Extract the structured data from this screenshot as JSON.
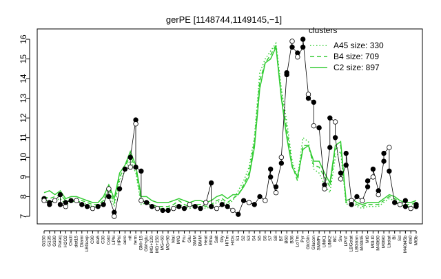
{
  "chart_data": {
    "type": "line",
    "title": "gerPE [1148744,1149145,−1]",
    "xlabel": "",
    "ylabel": "",
    "ylim": [
      7,
      16
    ],
    "y_ticks": [
      7,
      8,
      9,
      10,
      11,
      12,
      13,
      14,
      15,
      16
    ],
    "categories": [
      "G150",
      "G135",
      "G180",
      "Paraq",
      "H2O2",
      "Oxctl",
      "dist15",
      "Diami",
      "LBGexp",
      "C90",
      "dia5",
      "C30",
      "Cold",
      "LPhi",
      "HPhi",
      "aero",
      "nit",
      "ferm",
      "GM+15",
      "GM+glu",
      "MG+120",
      "MG+150",
      "MG+60",
      "MG+90",
      "Mal",
      "M/G",
      "Fru",
      "Glu",
      "SMM",
      "BMM",
      "Heat",
      "Etha",
      "Salt",
      "Gly",
      "HiTm",
      "HiOs",
      "S1",
      "S2",
      "S3",
      "S4",
      "S5",
      "S6",
      "S7",
      "S8",
      "BT",
      "B60",
      "B36",
      "LoTm",
      "Pyr",
      "GlcGln",
      "Glucon",
      "SMMPr",
      "UNK1",
      "UNK2",
      "BC",
      "Sw",
      "LPhT",
      "LBGstat",
      "LBGtran",
      "M40t45",
      "Mt0",
      "Mt0-t0",
      "M40t90",
      "M0t90",
      "Lbstat",
      "Bl",
      "Sd",
      "M40t45b",
      "dia0",
      "Mt0b"
    ],
    "x_tick_labels": [
      "G150",
      "G135",
      "G180",
      "Paraq",
      "H2O2",
      "Oxctl",
      "dist15",
      "Diami",
      "LBGexp",
      "C90",
      "dia5",
      "C30",
      "Cold",
      "LPhi",
      "HPhi",
      "aero",
      "nit",
      "ferm",
      "GM+15",
      "GM+glu",
      "MG+120",
      "MG+150",
      "MG+60",
      "MG+90",
      "Mal",
      "M/G",
      "Fru",
      "Glu",
      "SMM",
      "BMM",
      "Heat",
      "Etha",
      "Salt",
      "Gly",
      "HiTm",
      "HiOs",
      "S1",
      "S2",
      "S3",
      "S4",
      "S5",
      "S6",
      "S7",
      "S8",
      "BT",
      "B60",
      "B36",
      "LoTm",
      "Pyr",
      "GlcGln",
      "Glucon",
      "SMMPr",
      "UNK1",
      "UNK2",
      "BC",
      "Sw",
      "LPhT",
      "LBGstat",
      "LBGtran",
      "M40t45",
      "Mt0",
      "Mt0-t0",
      "M40t90",
      "M0t90",
      "Lbstat",
      "Bl",
      "Sd",
      "M40t45b",
      "dia0",
      "Mt0b"
    ],
    "series": [
      {
        "name": "A45 size: 330",
        "dash": "dotted",
        "values": [
          7.9,
          7.7,
          7.8,
          7.9,
          7.6,
          7.7,
          7.8,
          7.7,
          7.6,
          7.5,
          7.5,
          7.7,
          8.2,
          7.5,
          8.8,
          9.3,
          9.9,
          9.2,
          7.6,
          7.7,
          7.5,
          7.4,
          7.4,
          7.4,
          7.5,
          7.6,
          7.5,
          7.4,
          7.5,
          7.5,
          7.4,
          7.5,
          7.7,
          7.8,
          7.6,
          7.8,
          8.3,
          8.8,
          9.5,
          11.0,
          14.3,
          15.0,
          15.4,
          15.8,
          13.5,
          11.8,
          9.8,
          9.0,
          11.0,
          10.8,
          9.4,
          9.2,
          8.6,
          8.2,
          10.0,
          10.3,
          7.6,
          7.7,
          7.5,
          7.4,
          7.5,
          7.5,
          7.5,
          7.7,
          7.9,
          7.8,
          7.6,
          7.5,
          7.5,
          7.6
        ]
      },
      {
        "name": "B4 size: 709",
        "dash": "dashed",
        "values": [
          8.0,
          7.9,
          8.0,
          8.1,
          7.8,
          7.8,
          7.9,
          7.8,
          7.7,
          7.6,
          7.6,
          7.8,
          8.5,
          7.7,
          9.0,
          9.5,
          10.1,
          9.4,
          7.8,
          7.8,
          7.6,
          7.5,
          7.5,
          7.5,
          7.6,
          7.8,
          7.6,
          7.5,
          7.6,
          7.6,
          7.5,
          7.6,
          7.8,
          7.9,
          7.7,
          7.9,
          8.1,
          8.6,
          9.2,
          10.8,
          13.9,
          14.8,
          15.2,
          15.7,
          13.2,
          11.4,
          9.6,
          8.8,
          10.6,
          10.6,
          9.6,
          9.5,
          9.0,
          8.5,
          10.4,
          10.6,
          7.7,
          7.8,
          7.6,
          7.5,
          7.6,
          7.6,
          7.6,
          7.8,
          8.0,
          7.9,
          7.7,
          7.6,
          7.6,
          7.7
        ]
      },
      {
        "name": "C2 size: 897",
        "dash": "solid",
        "values": [
          8.2,
          8.3,
          8.1,
          8.3,
          7.9,
          8.0,
          8.0,
          7.9,
          7.8,
          7.7,
          7.7,
          8.0,
          8.6,
          7.9,
          9.2,
          9.6,
          10.3,
          9.6,
          8.0,
          8.0,
          7.8,
          7.7,
          7.7,
          7.7,
          7.8,
          7.9,
          7.8,
          7.7,
          7.8,
          7.8,
          7.7,
          7.8,
          8.0,
          8.1,
          7.9,
          8.1,
          8.1,
          8.5,
          9.0,
          10.5,
          13.5,
          14.8,
          15.0,
          15.6,
          13.0,
          11.0,
          9.5,
          9.0,
          10.4,
          10.6,
          9.8,
          9.8,
          9.2,
          8.7,
          10.6,
          10.8,
          7.8,
          7.9,
          7.7,
          7.6,
          7.7,
          7.7,
          7.7,
          7.9,
          8.1,
          8.0,
          7.8,
          7.7,
          7.7,
          7.8
        ]
      }
    ],
    "points": [
      {
        "x": 0,
        "y": 7.9
      },
      {
        "x": 0,
        "y": 7.8
      },
      {
        "x": 1,
        "y": 7.6
      },
      {
        "x": 1,
        "y": 7.7
      },
      {
        "x": 2,
        "y": 7.8
      },
      {
        "x": 3,
        "y": 8.1
      },
      {
        "x": 3,
        "y": 7.6
      },
      {
        "x": 4,
        "y": 7.5
      },
      {
        "x": 4,
        "y": 7.7
      },
      {
        "x": 5,
        "y": 7.8
      },
      {
        "x": 6,
        "y": 7.8
      },
      {
        "x": 7,
        "y": 7.6
      },
      {
        "x": 8,
        "y": 7.5
      },
      {
        "x": 9,
        "y": 7.4
      },
      {
        "x": 10,
        "y": 7.5
      },
      {
        "x": 11,
        "y": 7.6
      },
      {
        "x": 12,
        "y": 8.4
      },
      {
        "x": 12,
        "y": 8.0
      },
      {
        "x": 13,
        "y": 7.2
      },
      {
        "x": 13,
        "y": 7.0
      },
      {
        "x": 14,
        "y": 8.4
      },
      {
        "x": 15,
        "y": 9.4
      },
      {
        "x": 16,
        "y": 9.5
      },
      {
        "x": 16,
        "y": 10.0
      },
      {
        "x": 17,
        "y": 11.9
      },
      {
        "x": 17,
        "y": 11.7
      },
      {
        "x": 17,
        "y": 9.5
      },
      {
        "x": 18,
        "y": 9.3
      },
      {
        "x": 18,
        "y": 7.8
      },
      {
        "x": 19,
        "y": 7.7
      },
      {
        "x": 20,
        "y": 7.5
      },
      {
        "x": 21,
        "y": 7.4
      },
      {
        "x": 22,
        "y": 7.3
      },
      {
        "x": 23,
        "y": 7.3
      },
      {
        "x": 24,
        "y": 7.4
      },
      {
        "x": 25,
        "y": 7.5
      },
      {
        "x": 26,
        "y": 7.4
      },
      {
        "x": 27,
        "y": 7.6
      },
      {
        "x": 28,
        "y": 7.5
      },
      {
        "x": 29,
        "y": 7.4
      },
      {
        "x": 30,
        "y": 7.7
      },
      {
        "x": 31,
        "y": 8.7
      },
      {
        "x": 31,
        "y": 7.5
      },
      {
        "x": 32,
        "y": 7.4
      },
      {
        "x": 33,
        "y": 7.6
      },
      {
        "x": 34,
        "y": 7.5
      },
      {
        "x": 35,
        "y": 7.3
      },
      {
        "x": 36,
        "y": 7.1
      },
      {
        "x": 37,
        "y": 7.8
      },
      {
        "x": 38,
        "y": 7.7
      },
      {
        "x": 39,
        "y": 7.6
      },
      {
        "x": 40,
        "y": 8.0
      },
      {
        "x": 41,
        "y": 7.8
      },
      {
        "x": 42,
        "y": 9.4
      },
      {
        "x": 42,
        "y": 9.0
      },
      {
        "x": 43,
        "y": 8.2
      },
      {
        "x": 43,
        "y": 8.5
      },
      {
        "x": 44,
        "y": 9.7
      },
      {
        "x": 44,
        "y": 10.0
      },
      {
        "x": 45,
        "y": 14.3
      },
      {
        "x": 45,
        "y": 14.2
      },
      {
        "x": 46,
        "y": 15.9
      },
      {
        "x": 46,
        "y": 15.6
      },
      {
        "x": 47,
        "y": 15.3
      },
      {
        "x": 47,
        "y": 15.1
      },
      {
        "x": 48,
        "y": 15.6
      },
      {
        "x": 48,
        "y": 16.0
      },
      {
        "x": 49,
        "y": 13.2
      },
      {
        "x": 49,
        "y": 13.0
      },
      {
        "x": 50,
        "y": 12.8
      },
      {
        "x": 50,
        "y": 11.6
      },
      {
        "x": 51,
        "y": 11.5
      },
      {
        "x": 52,
        "y": 8.6
      },
      {
        "x": 52,
        "y": 8.4
      },
      {
        "x": 53,
        "y": 10.5
      },
      {
        "x": 53,
        "y": 12.0
      },
      {
        "x": 54,
        "y": 11.8
      },
      {
        "x": 54,
        "y": 11.0
      },
      {
        "x": 55,
        "y": 9.2
      },
      {
        "x": 55,
        "y": 8.9
      },
      {
        "x": 56,
        "y": 9.6
      },
      {
        "x": 56,
        "y": 10.2
      },
      {
        "x": 57,
        "y": 7.8
      },
      {
        "x": 57,
        "y": 7.6
      },
      {
        "x": 58,
        "y": 8.0
      },
      {
        "x": 59,
        "y": 7.8
      },
      {
        "x": 60,
        "y": 8.5
      },
      {
        "x": 60,
        "y": 8.8
      },
      {
        "x": 61,
        "y": 9.0
      },
      {
        "x": 61,
        "y": 9.4
      },
      {
        "x": 62,
        "y": 8.3
      },
      {
        "x": 62,
        "y": 8.1
      },
      {
        "x": 63,
        "y": 9.8
      },
      {
        "x": 63,
        "y": 10.2
      },
      {
        "x": 64,
        "y": 10.5
      },
      {
        "x": 64,
        "y": 9.3
      },
      {
        "x": 65,
        "y": 7.7
      },
      {
        "x": 66,
        "y": 7.6
      },
      {
        "x": 67,
        "y": 7.8
      },
      {
        "x": 67,
        "y": 7.5
      },
      {
        "x": 68,
        "y": 7.4
      },
      {
        "x": 69,
        "y": 7.5
      },
      {
        "x": 69,
        "y": 7.6
      }
    ],
    "legend": {
      "title": "clusters",
      "position": "top-right",
      "entries": [
        "A45 size: 330",
        "B4 size: 709",
        "C2 size: 897"
      ]
    },
    "colors": {
      "series": "#33cc33",
      "points": "#000000"
    },
    "grid": false
  }
}
